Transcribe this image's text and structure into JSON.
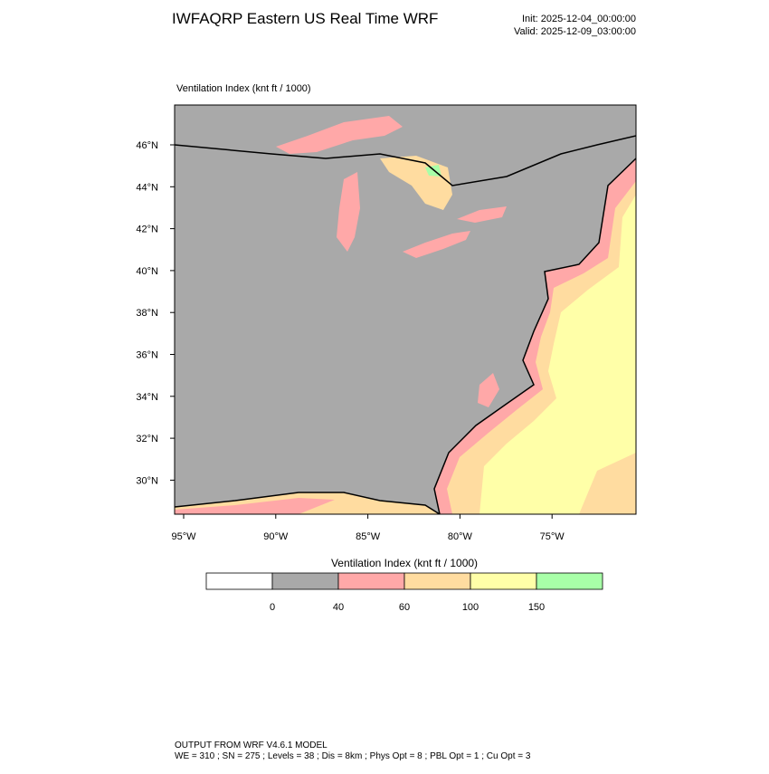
{
  "header": {
    "title": "IWFAQRP Eastern US Real Time WRF",
    "init": "Init: 2025-12-04_00:00:00",
    "valid": "Valid: 2025-12-09_03:00:00"
  },
  "map": {
    "field_label": "Ventilation Index   (knt ft / 1000)",
    "lat_labels": [
      "46°N",
      "44°N",
      "42°N",
      "40°N",
      "38°N",
      "36°N",
      "34°N",
      "32°N",
      "30°N"
    ],
    "lon_labels": [
      "95°W",
      "90°W",
      "85°W",
      "80°W",
      "75°W"
    ]
  },
  "colorbar": {
    "title": "Ventilation Index  (knt ft / 1000)",
    "boundaries": [
      0,
      40,
      60,
      100,
      150
    ],
    "colors": [
      "#ffffff",
      "#a9a9a9",
      "#ffa8a8",
      "#ffdca0",
      "#ffffa8",
      "#a8ffa8"
    ]
  },
  "footer": {
    "line1": "OUTPUT FROM WRF V4.6.1 MODEL",
    "line2": "WE = 310 ; SN = 275 ; Levels = 38 ; Dis = 8km ; Phys Opt = 8 ; PBL Opt = 1 ; Cu Opt = 3"
  }
}
